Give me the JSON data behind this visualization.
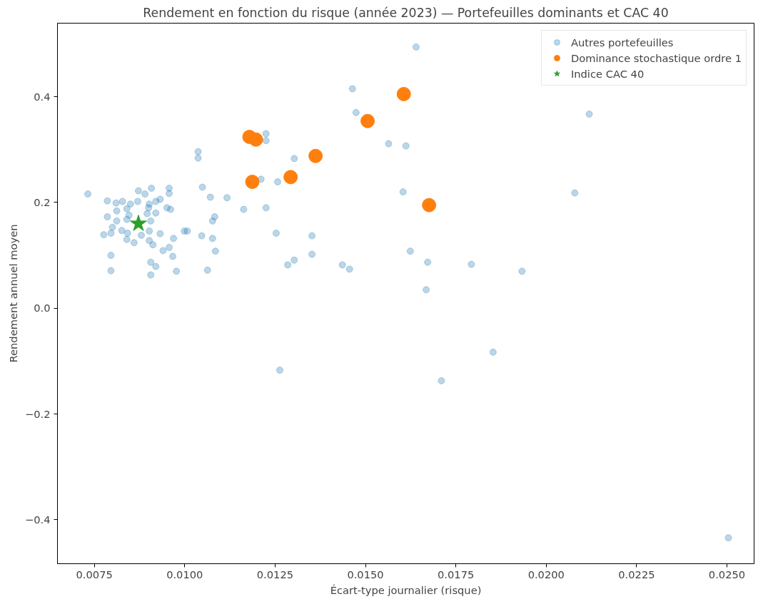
{
  "chart_data": {
    "type": "scatter",
    "title": "Rendement en fonction du risque (année 2023) — Portefeuilles dominants et CAC 40",
    "xlabel": "Écart-type journalier (risque)",
    "ylabel": "Rendement annuel moyen",
    "xlim": [
      0.00648,
      0.02575
    ],
    "ylim": [
      -0.483,
      0.539
    ],
    "xticks": [
      {
        "value": 0.0075,
        "label": "0.0075"
      },
      {
        "value": 0.01,
        "label": "0.0100"
      },
      {
        "value": 0.0125,
        "label": "0.0125"
      },
      {
        "value": 0.015,
        "label": "0.0150"
      },
      {
        "value": 0.0175,
        "label": "0.0175"
      },
      {
        "value": 0.02,
        "label": "0.0200"
      },
      {
        "value": 0.0225,
        "label": "0.0225"
      },
      {
        "value": 0.025,
        "label": "0.0250"
      }
    ],
    "yticks": [
      {
        "value": -0.4,
        "label": "−0.4"
      },
      {
        "value": -0.2,
        "label": "−0.2"
      },
      {
        "value": 0.0,
        "label": "0.0"
      },
      {
        "value": 0.2,
        "label": "0.2"
      },
      {
        "value": 0.4,
        "label": "0.4"
      }
    ],
    "grid": false,
    "legend": "top right",
    "series": [
      {
        "name": "Autres portefeuilles",
        "color": "#1f77b4",
        "marker": "circle",
        "x": [
          0.0164,
          0.01464,
          0.01474,
          0.01225,
          0.01225,
          0.01564,
          0.01612,
          0.01037,
          0.01037,
          0.01303,
          0.01211,
          0.01257,
          0.01049,
          0.01071,
          0.01117,
          0.01163,
          0.01225,
          0.01604,
          0.01083,
          0.01077,
          0.01007,
          0.01047,
          0.01077,
          0.01253,
          0.01352,
          0.01085,
          0.01352,
          0.01063,
          0.01285,
          0.01303,
          0.01436,
          0.01456,
          0.01624,
          0.01672,
          0.01793,
          0.01933,
          0.01668,
          0.01853,
          0.0171,
          0.02504,
          0.02119,
          0.02079,
          0.01263,
          0.00732,
          0.00786,
          0.0081,
          0.00828,
          0.0085,
          0.00872,
          0.0089,
          0.00908,
          0.00957,
          0.00957,
          0.00932,
          0.0092,
          0.00902,
          0.0087,
          0.00812,
          0.0084,
          0.009,
          0.00896,
          0.0092,
          0.00951,
          0.00961,
          0.00786,
          0.00812,
          0.00846,
          0.0084,
          0.00906,
          0.008,
          0.00776,
          0.00796,
          0.00826,
          0.00842,
          0.0088,
          0.00902,
          0.00932,
          0.00969,
          0.00999,
          0.0084,
          0.0086,
          0.00902,
          0.00912,
          0.0094,
          0.00957,
          0.00967,
          0.00906,
          0.0092,
          0.00796,
          0.00796,
          0.00906,
          0.00977
        ],
        "values": [
          0.494,
          0.415,
          0.37,
          0.33,
          0.317,
          0.311,
          0.307,
          0.296,
          0.284,
          0.283,
          0.244,
          0.239,
          0.229,
          0.21,
          0.209,
          0.187,
          0.19,
          0.22,
          0.173,
          0.165,
          0.146,
          0.137,
          0.132,
          0.142,
          0.137,
          0.108,
          0.102,
          0.072,
          0.082,
          0.091,
          0.082,
          0.074,
          0.108,
          0.087,
          0.083,
          0.07,
          0.035,
          -0.083,
          -0.137,
          -0.434,
          0.367,
          0.218,
          -0.117,
          0.216,
          0.203,
          0.199,
          0.202,
          0.197,
          0.222,
          0.216,
          0.227,
          0.227,
          0.217,
          0.206,
          0.202,
          0.197,
          0.202,
          0.184,
          0.188,
          0.19,
          0.179,
          0.18,
          0.19,
          0.187,
          0.173,
          0.165,
          0.176,
          0.168,
          0.165,
          0.153,
          0.139,
          0.142,
          0.147,
          0.142,
          0.138,
          0.146,
          0.141,
          0.132,
          0.146,
          0.13,
          0.124,
          0.128,
          0.12,
          0.109,
          0.115,
          0.098,
          0.087,
          0.079,
          0.1,
          0.071,
          0.063,
          0.07
        ]
      },
      {
        "name": "Dominance stochastique ordre 1",
        "color": "#ff7f0e",
        "marker": "circle",
        "x": [
          0.01179,
          0.01197,
          0.01606,
          0.01506,
          0.01362,
          0.01293,
          0.01187,
          0.01676
        ],
        "values": [
          0.324,
          0.319,
          0.405,
          0.354,
          0.288,
          0.248,
          0.239,
          0.195
        ]
      },
      {
        "name": "Indice CAC 40",
        "color": "#2ca02c",
        "marker": "star",
        "x": [
          0.00872
        ],
        "values": [
          0.16
        ]
      }
    ]
  }
}
